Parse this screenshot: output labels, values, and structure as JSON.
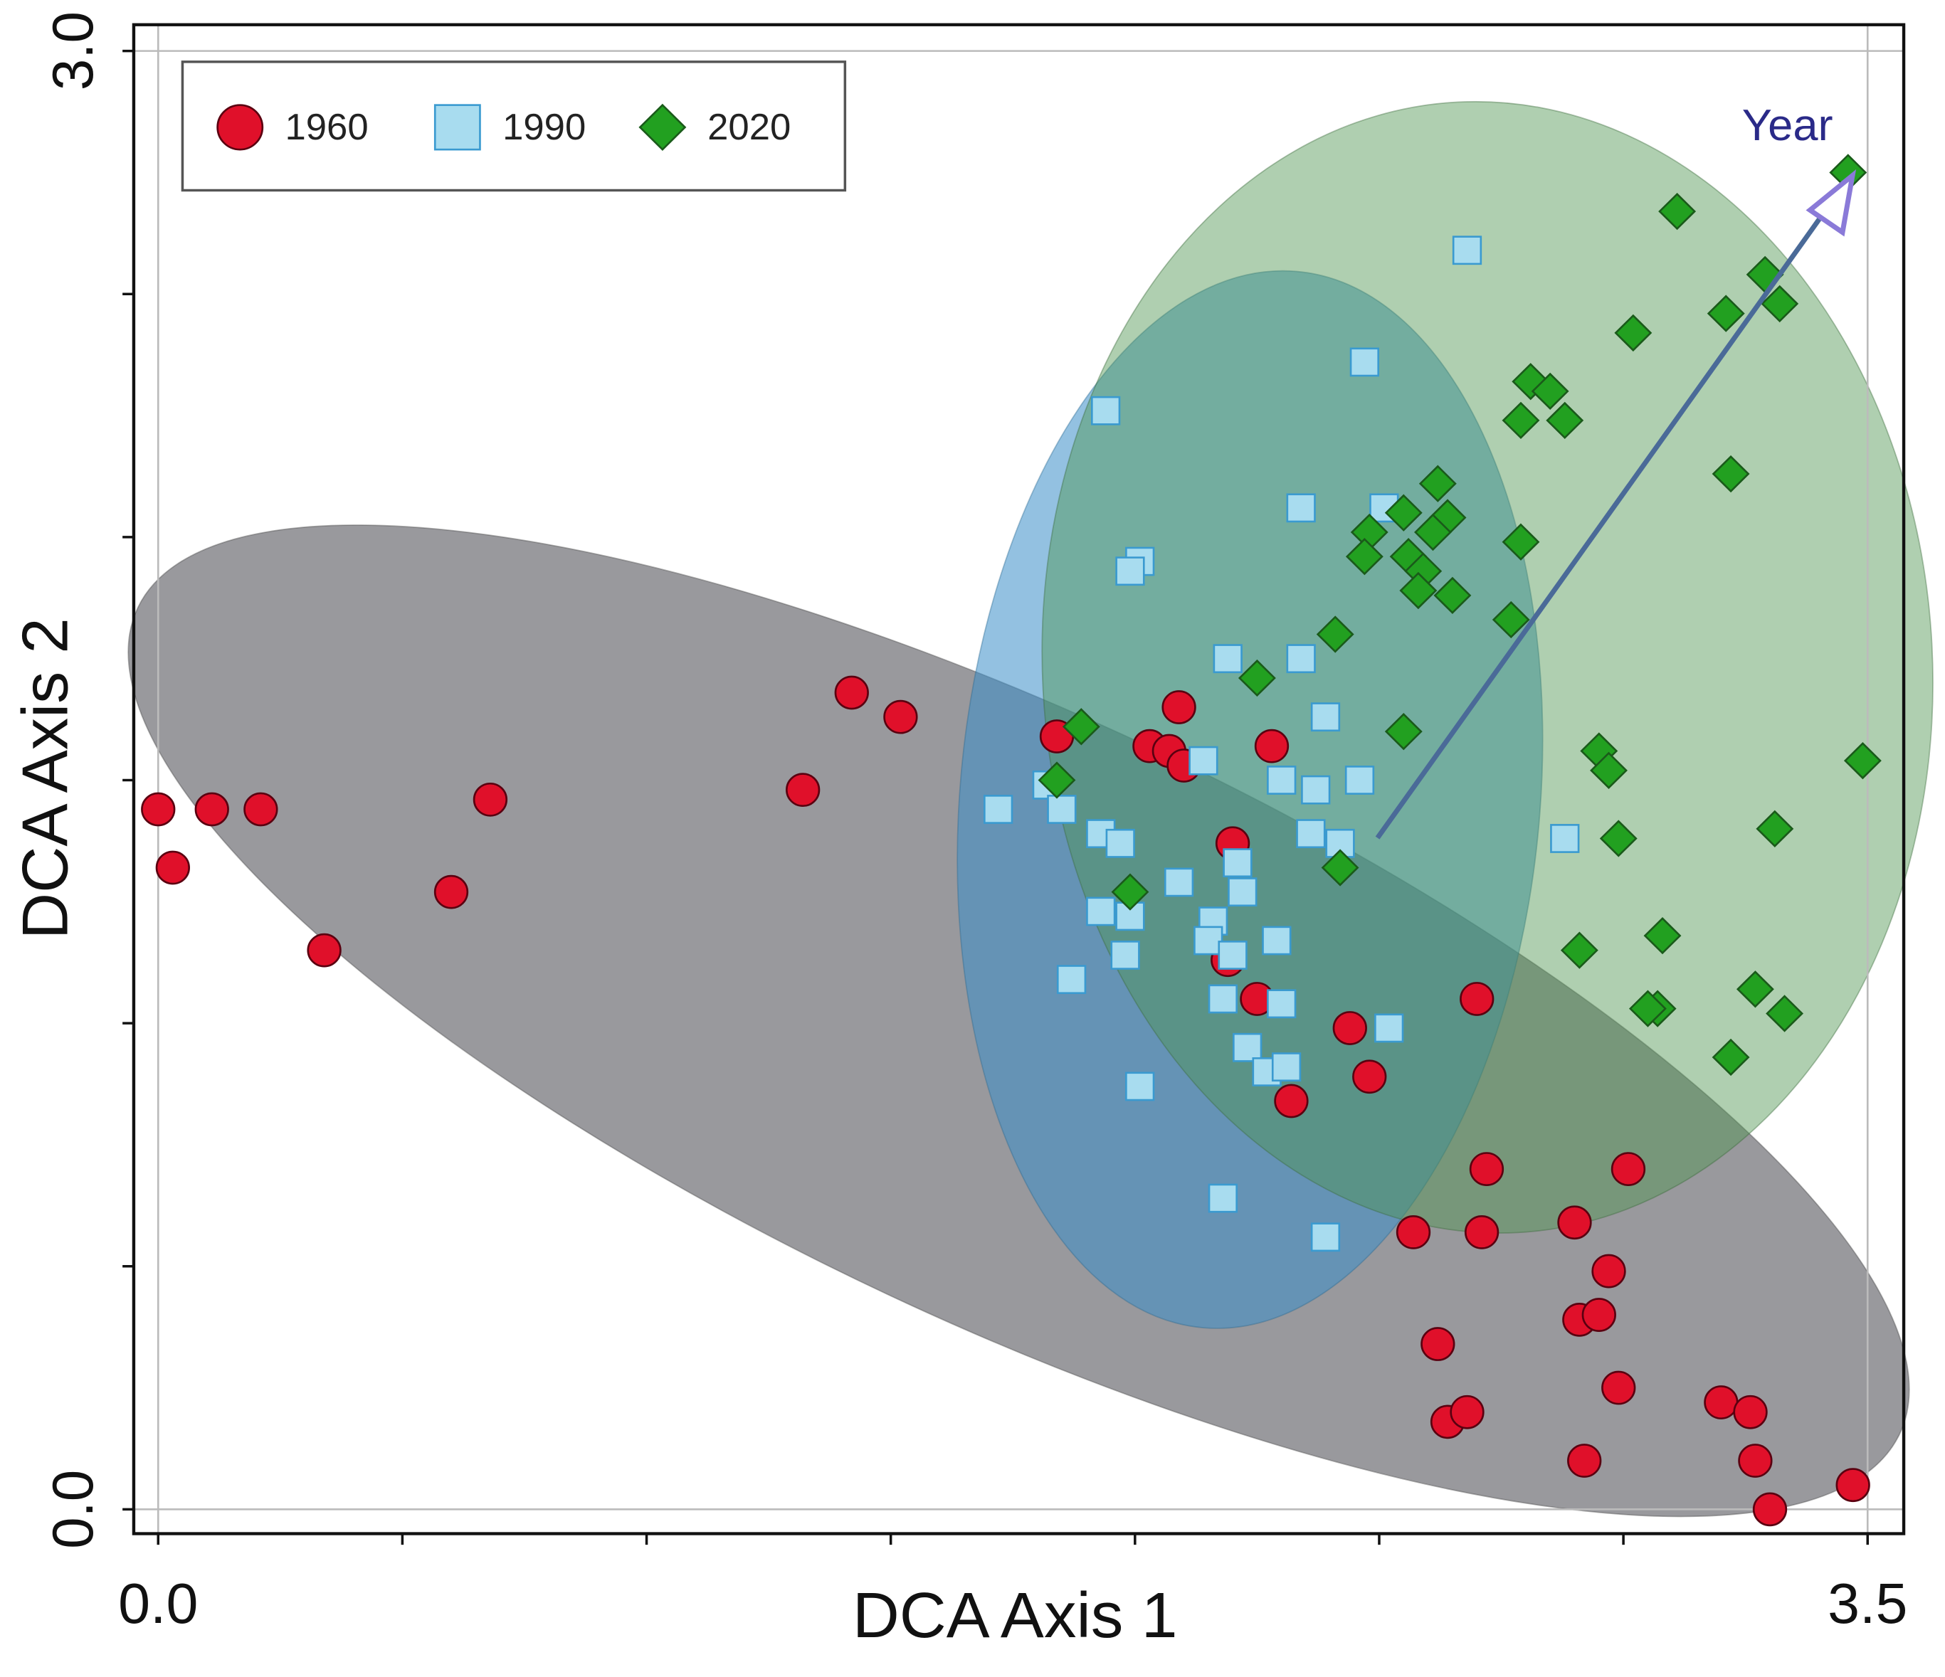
{
  "chart_data": {
    "type": "scatter",
    "xlabel": "DCA Axis 1",
    "ylabel": "DCA Axis 2",
    "xlim": [
      -0.05,
      3.574
    ],
    "ylim": [
      -0.05,
      3.054
    ],
    "xticks": [
      {
        "value": 0,
        "label": "0.0"
      },
      {
        "value": 3.5,
        "label": "3.5"
      }
    ],
    "yticks": [
      {
        "value": 0,
        "label": "0.0"
      },
      {
        "value": 3,
        "label": "3.0"
      }
    ],
    "xminor_ticks": [
      0.5,
      1,
      1.5,
      2,
      2.5,
      3
    ],
    "yminor_ticks": [
      0.5,
      1,
      1.5,
      2,
      2.5
    ],
    "legend": "upper left",
    "annotation": "Year",
    "series": [
      {
        "name": "1960",
        "color": "#e0102a",
        "marker": "circle",
        "x": [
          0.0,
          0.03,
          0.11,
          0.21,
          0.34,
          0.6,
          0.68,
          1.32,
          1.42,
          1.52,
          1.84,
          2.09,
          2.03,
          2.07,
          2.1,
          2.28,
          2.2,
          2.19,
          2.25,
          2.44,
          2.48,
          2.32,
          2.7,
          2.72,
          3.01,
          2.57,
          2.71,
          2.9,
          2.97,
          2.91,
          2.95,
          2.62,
          2.64,
          2.68,
          2.99,
          2.92,
          3.2,
          3.26,
          3.27,
          3.3,
          3.47
        ],
        "values": [
          1.44,
          1.32,
          1.44,
          1.44,
          1.15,
          1.27,
          1.46,
          1.48,
          1.68,
          1.63,
          1.59,
          1.65,
          1.57,
          1.56,
          1.53,
          1.57,
          1.37,
          1.13,
          1.05,
          0.99,
          0.89,
          0.84,
          1.05,
          0.7,
          0.7,
          0.57,
          0.57,
          0.59,
          0.49,
          0.39,
          0.4,
          0.34,
          0.18,
          0.2,
          0.25,
          0.1,
          0.22,
          0.2,
          0.1,
          0.0,
          0.05
        ]
      },
      {
        "name": "1990",
        "color": "#a8dcef",
        "marker": "square",
        "x": [
          2.68,
          2.47,
          1.94,
          2.34,
          2.51,
          2.01,
          1.99,
          2.19,
          2.34,
          2.39,
          2.14,
          1.82,
          1.72,
          1.85,
          2.3,
          2.37,
          2.46,
          1.93,
          1.97,
          2.36,
          2.42,
          2.21,
          2.09,
          2.22,
          1.93,
          1.99,
          2.16,
          2.15,
          2.2,
          2.29,
          1.98,
          1.87,
          2.18,
          2.3,
          2.52,
          2.23,
          2.27,
          2.31,
          2.01,
          2.18,
          2.39,
          2.88
        ],
        "values": [
          2.59,
          2.36,
          2.26,
          2.06,
          2.06,
          1.95,
          1.93,
          1.75,
          1.75,
          1.63,
          1.54,
          1.49,
          1.44,
          1.44,
          1.5,
          1.48,
          1.5,
          1.39,
          1.37,
          1.39,
          1.37,
          1.33,
          1.29,
          1.27,
          1.23,
          1.22,
          1.21,
          1.17,
          1.14,
          1.17,
          1.14,
          1.09,
          1.05,
          1.04,
          0.99,
          0.95,
          0.9,
          0.91,
          0.87,
          0.64,
          0.56,
          1.38
        ]
      },
      {
        "name": "2020",
        "color": "#22a020",
        "marker": "diamond",
        "x": [
          3.46,
          3.11,
          3.29,
          3.21,
          3.32,
          3.02,
          2.81,
          2.85,
          2.79,
          2.88,
          2.62,
          3.22,
          2.55,
          2.64,
          2.61,
          2.48,
          2.79,
          2.47,
          2.56,
          2.59,
          2.58,
          2.65,
          2.77,
          2.41,
          2.25,
          1.89,
          2.55,
          1.84,
          2.95,
          2.97,
          3.49,
          3.31,
          2.99,
          2.42,
          1.99,
          3.08,
          2.91,
          3.27,
          3.07,
          3.05,
          3.33,
          3.22
        ],
        "values": [
          2.75,
          2.67,
          2.54,
          2.46,
          2.48,
          2.42,
          2.32,
          2.3,
          2.24,
          2.24,
          2.11,
          2.13,
          2.05,
          2.04,
          2.01,
          2.01,
          1.99,
          1.96,
          1.96,
          1.93,
          1.89,
          1.88,
          1.83,
          1.8,
          1.71,
          1.61,
          1.6,
          1.5,
          1.56,
          1.52,
          1.54,
          1.4,
          1.38,
          1.32,
          1.27,
          1.18,
          1.15,
          1.07,
          1.03,
          1.03,
          1.02,
          0.93
        ]
      }
    ]
  }
}
